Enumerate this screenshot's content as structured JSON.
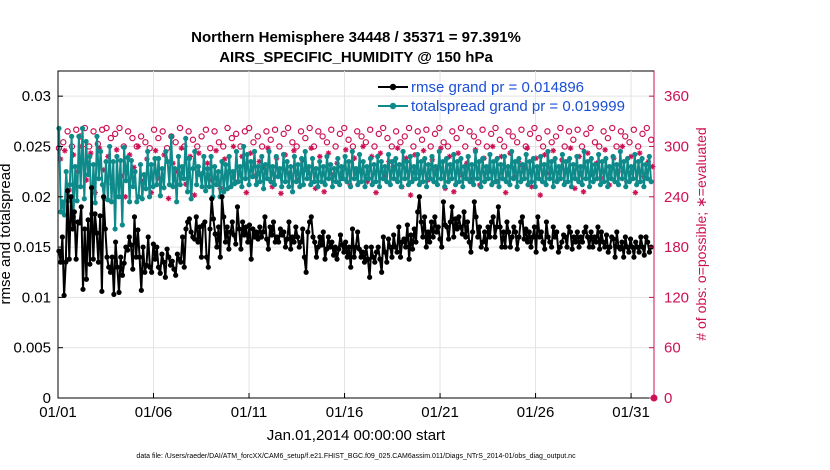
{
  "chart_data": {
    "type": "line",
    "title": "Northern Hemisphere 34448 / 35371 = 97.391%",
    "subtitle": "AIRS_SPECIFIC_HUMIDITY @ 150 hPa",
    "xlabel": "Jan.01,2014 00:00:00 start",
    "ylabel": "rmse and totalspread",
    "y2label": "# of obs: o=possible; ∗=evaluated",
    "footer": "data file: /Users/raeder/DAI/ATM_forcXX/CAM6_setup/f.e21.FHIST_BGC.f09_025.CAM6assim.011/Diags_NTrS_2014-01/obs_diag_output.nc",
    "xlim": [
      0,
      31.2
    ],
    "ylim": [
      0,
      0.0325
    ],
    "y2lim": [
      0,
      390
    ],
    "xticks": [
      0,
      5,
      10,
      15,
      20,
      25,
      30
    ],
    "xtick_labels": [
      "01/01",
      "01/06",
      "01/11",
      "01/16",
      "01/21",
      "01/26",
      "01/31"
    ],
    "yticks": [
      0,
      0.005,
      0.01,
      0.015,
      0.02,
      0.025,
      0.03
    ],
    "ytick_labels": [
      "0",
      "0.005",
      "0.01",
      "0.015",
      "0.02",
      "0.025",
      "0.03"
    ],
    "y2ticks": [
      0,
      60,
      120,
      180,
      240,
      300,
      360
    ],
    "y2tick_labels": [
      "0",
      "60",
      "120",
      "180",
      "240",
      "300",
      "360"
    ],
    "grid": true,
    "legend_position": "top-right",
    "colors": {
      "rmse": "#000000",
      "spread": "#0f8a8a",
      "obs": "#cc1155",
      "legend_text": "#1a4fd6"
    },
    "series": [
      {
        "name": "rmse grand pr = 0.014896",
        "axis": "left",
        "values": [
          0.0146,
          0.0135,
          0.016,
          0.0102,
          0.0135,
          0.0206,
          0.0138,
          0.02,
          0.0168,
          0.0185,
          0.0138,
          0.0175,
          0.0174,
          0.019,
          0.0108,
          0.0168,
          0.0118,
          0.0177,
          0.0133,
          0.0209,
          0.0138,
          0.0183,
          0.0164,
          0.0135,
          0.0181,
          0.0106,
          0.02,
          0.0168,
          0.014,
          0.013,
          0.0125,
          0.014,
          0.0103,
          0.0155,
          0.013,
          0.0105,
          0.014,
          0.0122,
          0.0134,
          0.015,
          0.0147,
          0.016,
          0.0152,
          0.0128,
          0.018,
          0.014,
          0.0167,
          0.014,
          0.0107,
          0.015,
          0.0125,
          0.0132,
          0.016,
          0.013,
          0.0125,
          0.0153,
          0.0138,
          0.015,
          0.013,
          0.0124,
          0.0143,
          0.0135,
          0.012,
          0.0148,
          0.014,
          0.0132,
          0.0136,
          0.0128,
          0.0122,
          0.0143,
          0.0138,
          0.0135,
          0.016,
          0.013,
          0.0168,
          0.0175,
          0.0178,
          0.0165,
          0.016,
          0.0158,
          0.018,
          0.0155,
          0.017,
          0.014,
          0.0172,
          0.0175,
          0.014,
          0.013,
          0.0168,
          0.0198,
          0.0178,
          0.0163,
          0.015,
          0.017,
          0.014,
          0.02,
          0.018,
          0.0155,
          0.017,
          0.0148,
          0.0165,
          0.0175,
          0.0162,
          0.0153,
          0.019,
          0.0168,
          0.0148,
          0.0175,
          0.0162,
          0.017,
          0.0155,
          0.0172,
          0.0138,
          0.0168,
          0.016,
          0.0165,
          0.0158,
          0.017,
          0.016,
          0.0165,
          0.018,
          0.0158,
          0.0148,
          0.017,
          0.0162,
          0.0175,
          0.0155,
          0.016,
          0.0155,
          0.0168,
          0.0162,
          0.0165,
          0.015,
          0.0158,
          0.0175,
          0.0148,
          0.016,
          0.0155,
          0.017,
          0.016,
          0.015,
          0.0155,
          0.0168,
          0.014,
          0.0125,
          0.0165,
          0.0175,
          0.018,
          0.016,
          0.0155,
          0.014,
          0.015,
          0.016,
          0.0152,
          0.0165,
          0.0138,
          0.0148,
          0.016,
          0.015,
          0.0155,
          0.0142,
          0.015,
          0.0138,
          0.0148,
          0.0162,
          0.0152,
          0.0145,
          0.0155,
          0.014,
          0.015,
          0.013,
          0.0168,
          0.014,
          0.015,
          0.0165,
          0.0148,
          0.014,
          0.0145,
          0.0135,
          0.015,
          0.0138,
          0.012,
          0.015,
          0.014,
          0.0135,
          0.0145,
          0.015,
          0.0138,
          0.0125,
          0.016,
          0.0145,
          0.0135,
          0.0158,
          0.015,
          0.014,
          0.0162,
          0.015,
          0.0145,
          0.017,
          0.014,
          0.0155,
          0.0158,
          0.015,
          0.0172,
          0.0138,
          0.0162,
          0.0148,
          0.0168,
          0.0155,
          0.0185,
          0.02,
          0.0175,
          0.016,
          0.018,
          0.015,
          0.0165,
          0.0155,
          0.0175,
          0.016,
          0.018,
          0.0165,
          0.017,
          0.0158,
          0.015,
          0.0195,
          0.0172,
          0.017,
          0.0158,
          0.0175,
          0.019,
          0.016,
          0.0178,
          0.0168,
          0.018,
          0.017,
          0.0163,
          0.0185,
          0.016,
          0.0175,
          0.0155,
          0.0145,
          0.0165,
          0.0195,
          0.018,
          0.016,
          0.017,
          0.015,
          0.0155,
          0.0165,
          0.0148,
          0.017,
          0.016,
          0.0175,
          0.018,
          0.016,
          0.017,
          0.019,
          0.017,
          0.015,
          0.0165,
          0.015,
          0.0175,
          0.0165,
          0.015,
          0.016,
          0.017,
          0.0165,
          0.0148,
          0.016,
          0.0175,
          0.018,
          0.0158,
          0.0168,
          0.0155,
          0.0165,
          0.015,
          0.016,
          0.017,
          0.0145,
          0.018,
          0.016,
          0.0165,
          0.0155,
          0.0148,
          0.0175,
          0.016,
          0.0155,
          0.015,
          0.017,
          0.016,
          0.0165,
          0.0145,
          0.015,
          0.0155,
          0.0162,
          0.016,
          0.015,
          0.017,
          0.0165,
          0.0148,
          0.016,
          0.0155,
          0.0165,
          0.015,
          0.016,
          0.0155,
          0.0165,
          0.017,
          0.016,
          0.015,
          0.0165,
          0.015,
          0.016,
          0.0155,
          0.017,
          0.0148,
          0.0165,
          0.0155,
          0.015,
          0.0162,
          0.0145,
          0.015,
          0.016,
          0.0158,
          0.014,
          0.0165,
          0.015,
          0.0148,
          0.0155,
          0.014,
          0.016,
          0.015,
          0.0145,
          0.0158,
          0.015,
          0.014,
          0.0155,
          0.015,
          0.0145,
          0.016,
          0.015,
          0.0142,
          0.016,
          0.0155,
          0.0145,
          0.015
        ]
      },
      {
        "name": "totalspread grand pr = 0.019999",
        "axis": "left",
        "values": [
          0.0268,
          0.0185,
          0.0195,
          0.0182,
          0.0225,
          0.0196,
          0.0212,
          0.026,
          0.018,
          0.023,
          0.0196,
          0.026,
          0.021,
          0.0268,
          0.0198,
          0.0255,
          0.0222,
          0.024,
          0.0183,
          0.0232,
          0.0194,
          0.026,
          0.0218,
          0.0245,
          0.0212,
          0.0198,
          0.0235,
          0.0197,
          0.025,
          0.0195,
          0.0235,
          0.0168,
          0.024,
          0.02,
          0.0236,
          0.0172,
          0.0249,
          0.0216,
          0.0239,
          0.0195,
          0.0236,
          0.021,
          0.0225,
          0.0195,
          0.02,
          0.0232,
          0.0198,
          0.0222,
          0.0208,
          0.0245,
          0.02,
          0.0232,
          0.021,
          0.0238,
          0.0212,
          0.0238,
          0.0201,
          0.0228,
          0.0209,
          0.0245,
          0.0235,
          0.0212,
          0.026,
          0.021,
          0.0228,
          0.0195,
          0.024,
          0.0212,
          0.023,
          0.0218,
          0.0258,
          0.0205,
          0.0238,
          0.0198,
          0.0228,
          0.0245,
          0.0212,
          0.023,
          0.0222,
          0.021,
          0.024,
          0.0206,
          0.0228,
          0.021,
          0.024,
          0.02,
          0.023,
          0.0212,
          0.0225,
          0.02,
          0.0235,
          0.0205,
          0.0232,
          0.0208,
          0.024,
          0.021,
          0.0225,
          0.0213,
          0.0245,
          0.0215,
          0.023,
          0.021,
          0.025,
          0.0218,
          0.0242,
          0.0212,
          0.0235,
          0.022,
          0.0245,
          0.0212,
          0.023,
          0.0215,
          0.024,
          0.0208,
          0.0232,
          0.0218,
          0.0245,
          0.0215,
          0.023,
          0.0212,
          0.024,
          0.022,
          0.0228,
          0.021,
          0.0242,
          0.0215,
          0.0235,
          0.021,
          0.023,
          0.0205,
          0.024,
          0.0215,
          0.0232,
          0.021,
          0.0238,
          0.0212,
          0.0245,
          0.0218,
          0.023,
          0.0212,
          0.0238,
          0.0215,
          0.0228,
          0.021,
          0.0235,
          0.0215,
          0.023,
          0.0212,
          0.024,
          0.0218,
          0.0232,
          0.021,
          0.0228,
          0.0215,
          0.0238,
          0.0212,
          0.023,
          0.0218,
          0.024,
          0.0215,
          0.0235,
          0.021,
          0.0245,
          0.0218,
          0.0228,
          0.0212,
          0.0242,
          0.0215,
          0.0235,
          0.021,
          0.023,
          0.0218,
          0.0238,
          0.0212,
          0.0232,
          0.0215,
          0.024,
          0.021,
          0.0235,
          0.0218,
          0.023,
          0.0215,
          0.0242,
          0.0212,
          0.0235,
          0.0218,
          0.0238,
          0.0215,
          0.0232,
          0.021,
          0.0245,
          0.0218,
          0.0235,
          0.0212,
          0.024,
          0.0215,
          0.023,
          0.0218,
          0.0242,
          0.0212,
          0.0235,
          0.0215,
          0.0238,
          0.021,
          0.0232,
          0.0218,
          0.024,
          0.0215,
          0.023,
          0.0212,
          0.0245,
          0.0218,
          0.0235,
          0.021,
          0.0238,
          0.0215,
          0.0232,
          0.0218,
          0.0242,
          0.0212,
          0.0235,
          0.0215,
          0.0238,
          0.021,
          0.023,
          0.0218,
          0.024,
          0.0215,
          0.0232,
          0.0212,
          0.0245,
          0.0218,
          0.0235,
          0.021,
          0.0238,
          0.0215,
          0.023,
          0.0218,
          0.0242,
          0.0212,
          0.0235,
          0.0215,
          0.0238,
          0.021,
          0.0232,
          0.0218,
          0.024,
          0.0215,
          0.023,
          0.0212,
          0.0245,
          0.0218,
          0.0235,
          0.021,
          0.0238,
          0.0215,
          0.0232,
          0.0218,
          0.0242,
          0.0212,
          0.0235,
          0.0215,
          0.0238,
          0.021,
          0.023,
          0.0218,
          0.024,
          0.0215,
          0.0232,
          0.0212,
          0.0245,
          0.0218,
          0.0235,
          0.021,
          0.0238,
          0.0215,
          0.023,
          0.0218,
          0.0242,
          0.0212,
          0.0235,
          0.0215,
          0.0238,
          0.021,
          0.0232,
          0.0218,
          0.024,
          0.0215,
          0.023,
          0.0212,
          0.0245,
          0.0218,
          0.0235,
          0.021,
          0.0238,
          0.0215,
          0.0232,
          0.0218,
          0.0242,
          0.0212,
          0.0235,
          0.0215,
          0.0238,
          0.021,
          0.023,
          0.0218,
          0.024,
          0.0215,
          0.0232,
          0.0212,
          0.0245,
          0.0218,
          0.0235,
          0.021,
          0.0238,
          0.0215,
          0.023,
          0.0218,
          0.0242,
          0.0212,
          0.0235,
          0.0215,
          0.0238,
          0.021,
          0.0232,
          0.0218,
          0.024,
          0.0215
        ]
      },
      {
        "name": "obs possible",
        "axis": "right",
        "values": [
          298,
          305,
          318,
          300,
          320,
          312,
          322,
          300,
          318,
          303,
          320,
          322,
          310,
          315,
          322,
          300,
          318,
          310,
          300,
          312,
          305,
          298,
          320,
          310,
          318,
          298,
          312,
          305,
          322,
          300,
          318,
          308,
          300,
          312,
          320,
          298,
          318,
          305,
          300,
          322,
          310,
          315,
          300,
          318,
          322,
          305,
          312,
          300,
          318,
          308,
          320,
          300,
          315,
          322,
          305,
          300,
          318,
          310,
          322,
          300,
          318,
          312,
          305,
          320,
          300,
          315,
          322,
          308,
          300,
          318,
          312,
          305,
          320,
          300,
          315,
          322,
          310,
          300,
          318,
          305,
          312,
          322,
          300,
          318,
          308,
          320,
          300,
          315,
          322,
          305,
          300,
          318,
          310,
          322,
          300,
          318,
          312,
          305,
          320,
          300,
          315,
          322,
          308,
          300,
          318,
          312,
          305,
          320,
          300,
          315,
          322,
          310,
          300,
          318,
          305,
          312,
          322,
          300,
          318,
          308,
          320,
          300,
          315,
          322,
          305,
          300,
          318,
          310,
          322,
          300,
          318,
          312,
          305,
          320,
          300,
          315,
          322,
          308
        ]
      },
      {
        "name": "obs evaluated",
        "axis": "right",
        "values": [
          285,
          295,
          248,
          290,
          270,
          300,
          260,
          292,
          245,
          298,
          272,
          288,
          255,
          296,
          265,
          240,
          290,
          275,
          300,
          258,
          285,
          245,
          295,
          262,
          290,
          238,
          280,
          270,
          298,
          255,
          288,
          242,
          292,
          268,
          280,
          260,
          295,
          250,
          285,
          270,
          300,
          258,
          288,
          245,
          292,
          265,
          282,
          275,
          298,
          252,
          286,
          244,
          290,
          268,
          295,
          260,
          283,
          272,
          298,
          250,
          288,
          246,
          292,
          266,
          280,
          262,
          296,
          254,
          286,
          270,
          300,
          258,
          288,
          245,
          292,
          264,
          282,
          276,
          298,
          252,
          286,
          242,
          290,
          268,
          295,
          260,
          284,
          272,
          298,
          250,
          288,
          246,
          292,
          266,
          280,
          262,
          296,
          254,
          286,
          270,
          300,
          258,
          288,
          245,
          292,
          264,
          282,
          276,
          298,
          252,
          286,
          242,
          290,
          268,
          295,
          260,
          284,
          272,
          298,
          250,
          288,
          246,
          292,
          266,
          280,
          262,
          296,
          254,
          286,
          270,
          300,
          258,
          288,
          245,
          292,
          264,
          282,
          276
        ]
      }
    ]
  }
}
